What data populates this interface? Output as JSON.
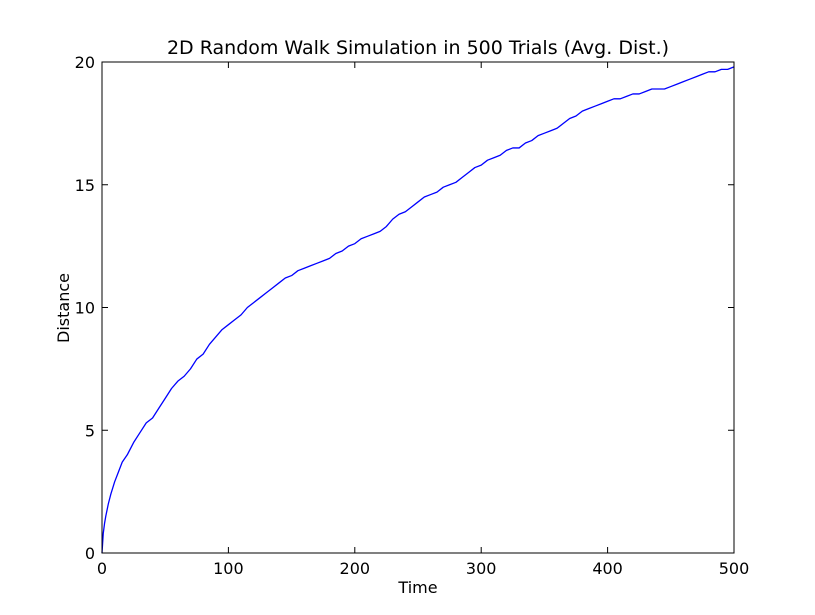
{
  "chart_data": {
    "type": "line",
    "title": "2D Random Walk Simulation in 500 Trials (Avg. Dist.)",
    "xlabel": "Time",
    "ylabel": "Distance",
    "xlim": [
      0,
      500
    ],
    "ylim": [
      0,
      20
    ],
    "xticks": [
      0,
      100,
      200,
      300,
      400,
      500
    ],
    "yticks": [
      0,
      5,
      10,
      15,
      20
    ],
    "grid": false,
    "series": [
      {
        "color": "#0000ff",
        "x": [
          0,
          1,
          2,
          3,
          5,
          7,
          10,
          13,
          16,
          20,
          25,
          30,
          35,
          40,
          45,
          50,
          55,
          60,
          65,
          70,
          75,
          80,
          85,
          90,
          95,
          100,
          105,
          110,
          115,
          120,
          125,
          130,
          135,
          140,
          145,
          150,
          155,
          160,
          165,
          170,
          175,
          180,
          185,
          190,
          195,
          200,
          205,
          210,
          215,
          220,
          225,
          230,
          235,
          240,
          245,
          250,
          255,
          260,
          265,
          270,
          275,
          280,
          285,
          290,
          295,
          300,
          305,
          310,
          315,
          320,
          325,
          330,
          335,
          340,
          345,
          350,
          355,
          360,
          365,
          370,
          375,
          380,
          385,
          390,
          395,
          400,
          405,
          410,
          415,
          420,
          425,
          430,
          435,
          440,
          445,
          450,
          455,
          460,
          465,
          470,
          475,
          480,
          485,
          490,
          495,
          500
        ],
        "y": [
          0.0,
          0.8,
          1.2,
          1.5,
          2.0,
          2.4,
          2.9,
          3.3,
          3.7,
          4.0,
          4.5,
          4.9,
          5.3,
          5.5,
          5.9,
          6.3,
          6.7,
          7.0,
          7.2,
          7.5,
          7.9,
          8.1,
          8.5,
          8.8,
          9.1,
          9.3,
          9.5,
          9.7,
          10.0,
          10.2,
          10.4,
          10.6,
          10.8,
          11.0,
          11.2,
          11.3,
          11.5,
          11.6,
          11.7,
          11.8,
          11.9,
          12.0,
          12.2,
          12.3,
          12.5,
          12.6,
          12.8,
          12.9,
          13.0,
          13.1,
          13.3,
          13.6,
          13.8,
          13.9,
          14.1,
          14.3,
          14.5,
          14.6,
          14.7,
          14.9,
          15.0,
          15.1,
          15.3,
          15.5,
          15.7,
          15.8,
          16.0,
          16.1,
          16.2,
          16.4,
          16.5,
          16.5,
          16.7,
          16.8,
          17.0,
          17.1,
          17.2,
          17.3,
          17.5,
          17.7,
          17.8,
          18.0,
          18.1,
          18.2,
          18.3,
          18.4,
          18.5,
          18.5,
          18.6,
          18.7,
          18.7,
          18.8,
          18.9,
          18.9,
          18.9,
          19.0,
          19.1,
          19.2,
          19.3,
          19.4,
          19.5,
          19.6,
          19.6,
          19.7,
          19.7,
          19.8
        ]
      }
    ]
  }
}
